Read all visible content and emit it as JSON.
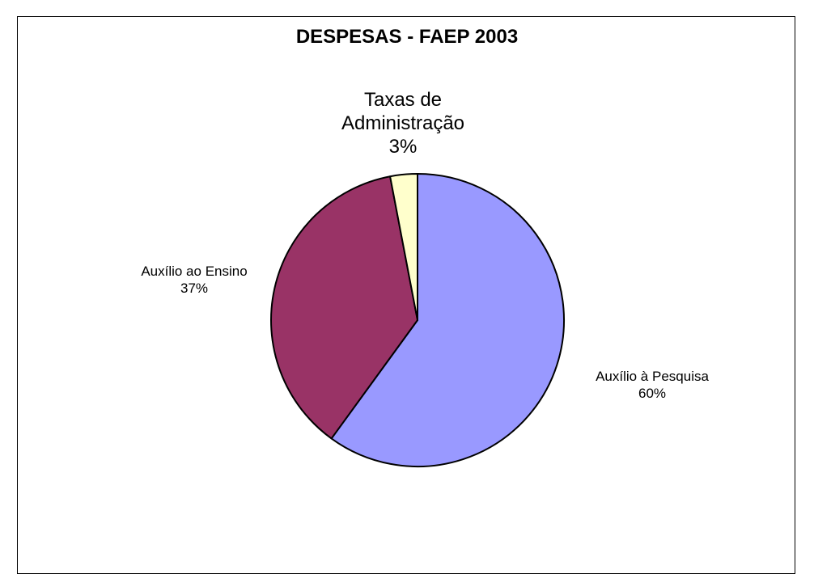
{
  "chart_data": {
    "type": "pie",
    "title": "DESPESAS - FAEP 2003",
    "slices": [
      {
        "name": "Auxílio à Pesquisa",
        "value": 60,
        "value_label": "60%",
        "color": "#9999FF"
      },
      {
        "name": "Auxílio ao Ensino",
        "value": 37,
        "value_label": "37%",
        "color": "#993366"
      },
      {
        "name": "Taxas de Administração",
        "value": 3,
        "value_label": "3%",
        "color": "#FFFFCC"
      }
    ],
    "start_angle_deg": 0,
    "direction": "clockwise",
    "legend": "none"
  }
}
